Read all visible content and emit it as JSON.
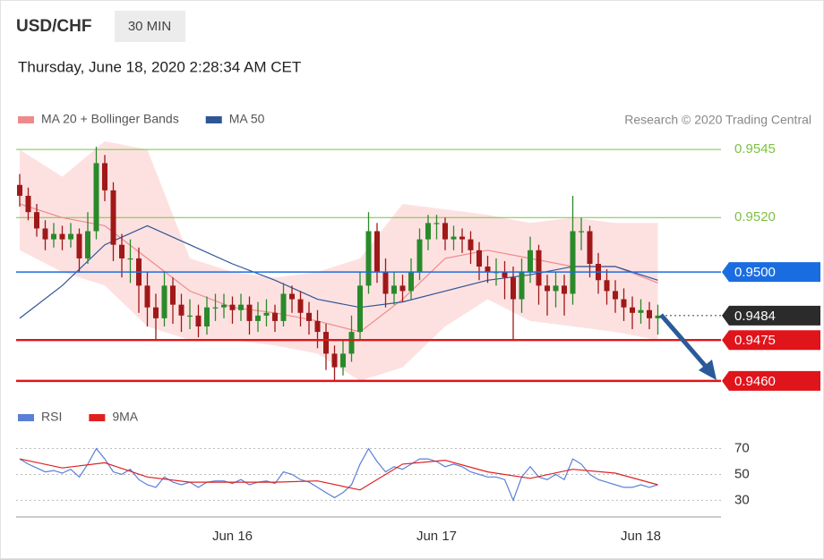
{
  "header": {
    "symbol": "USD/CHF",
    "timeframe": "30 MIN",
    "datetime": "Thursday, June 18, 2020 2:28:34 AM CET"
  },
  "copyright": "Research © 2020 Trading Central",
  "chart_data": [
    {
      "type": "candlestick",
      "ylim": [
        0.9457,
        0.9549
      ],
      "up_color": "#2a8a2a",
      "down_color": "#a01818",
      "open": [
        0.9532,
        0.9528,
        0.9522,
        0.9516,
        0.9512,
        0.9514,
        0.9512,
        0.9514,
        0.9505,
        0.9515,
        0.954,
        0.953,
        0.951,
        0.9505,
        0.9505,
        0.9495,
        0.9487,
        0.9483,
        0.9495,
        0.9488,
        0.9484,
        0.9484,
        0.948,
        0.9487,
        0.9487,
        0.9488,
        0.9486,
        0.9488,
        0.9482,
        0.9484,
        0.9485,
        0.9482,
        0.9492,
        0.949,
        0.9485,
        0.9482,
        0.9478,
        0.947,
        0.9465,
        0.947,
        0.9478,
        0.9495,
        0.9515,
        0.95,
        0.9492,
        0.9495,
        0.9493,
        0.95,
        0.9512,
        0.9518,
        0.9518,
        0.9512,
        0.9513,
        0.9512,
        0.9508,
        0.9502,
        0.95,
        0.95,
        0.9498,
        0.949,
        0.95,
        0.9508,
        0.9495,
        0.9493,
        0.9495,
        0.9492,
        0.9515,
        0.9515,
        0.9503,
        0.9497,
        0.9493,
        0.949,
        0.9487,
        0.9485,
        0.9486,
        0.9483
      ],
      "high": [
        0.9536,
        0.9531,
        0.9525,
        0.9519,
        0.9518,
        0.9517,
        0.9518,
        0.9516,
        0.9522,
        0.9546,
        0.9543,
        0.9533,
        0.9514,
        0.9512,
        0.9509,
        0.95,
        0.9492,
        0.95,
        0.9498,
        0.9492,
        0.949,
        0.9488,
        0.9491,
        0.9492,
        0.9492,
        0.9491,
        0.9492,
        0.9491,
        0.9489,
        0.949,
        0.9488,
        0.9496,
        0.9495,
        0.9493,
        0.9489,
        0.9486,
        0.9481,
        0.9473,
        0.9475,
        0.9484,
        0.95,
        0.9522,
        0.9518,
        0.9505,
        0.95,
        0.9499,
        0.9505,
        0.9516,
        0.9521,
        0.9521,
        0.952,
        0.9517,
        0.9516,
        0.9515,
        0.9511,
        0.9506,
        0.9505,
        0.9504,
        0.9502,
        0.9505,
        0.9513,
        0.951,
        0.9499,
        0.95,
        0.9499,
        0.9528,
        0.952,
        0.9517,
        0.9507,
        0.9501,
        0.9497,
        0.9494,
        0.9491,
        0.949,
        0.9489,
        0.9488
      ],
      "low": [
        0.9524,
        0.9519,
        0.9513,
        0.9508,
        0.9509,
        0.9508,
        0.9509,
        0.95,
        0.9503,
        0.9512,
        0.9526,
        0.9504,
        0.9498,
        0.9496,
        0.9485,
        0.948,
        0.9475,
        0.948,
        0.9481,
        0.9478,
        0.9479,
        0.9476,
        0.9477,
        0.9482,
        0.9483,
        0.9481,
        0.9482,
        0.9477,
        0.9478,
        0.948,
        0.9478,
        0.948,
        0.9485,
        0.948,
        0.9477,
        0.9472,
        0.9464,
        0.946,
        0.9462,
        0.9467,
        0.9475,
        0.9492,
        0.9496,
        0.9487,
        0.9488,
        0.9489,
        0.949,
        0.9497,
        0.9508,
        0.9512,
        0.9508,
        0.9508,
        0.9507,
        0.9503,
        0.9497,
        0.9496,
        0.9495,
        0.949,
        0.9475,
        0.9485,
        0.9496,
        0.9488,
        0.9484,
        0.9487,
        0.9484,
        0.9488,
        0.9508,
        0.9498,
        0.9492,
        0.9488,
        0.9485,
        0.9482,
        0.9479,
        0.9481,
        0.9479,
        0.9477
      ],
      "close": [
        0.9528,
        0.9522,
        0.9516,
        0.9512,
        0.9514,
        0.9512,
        0.9514,
        0.9505,
        0.9515,
        0.954,
        0.953,
        0.951,
        0.9505,
        0.9505,
        0.9495,
        0.9487,
        0.9483,
        0.9495,
        0.9488,
        0.9484,
        0.9484,
        0.948,
        0.9487,
        0.9487,
        0.9488,
        0.9486,
        0.9488,
        0.9482,
        0.9484,
        0.9485,
        0.9482,
        0.9492,
        0.949,
        0.9485,
        0.9482,
        0.9478,
        0.947,
        0.9465,
        0.947,
        0.9478,
        0.9495,
        0.9515,
        0.95,
        0.9492,
        0.9495,
        0.9493,
        0.95,
        0.9512,
        0.9518,
        0.9518,
        0.9512,
        0.9513,
        0.9512,
        0.9508,
        0.9502,
        0.95,
        0.95,
        0.9498,
        0.949,
        0.95,
        0.9508,
        0.9495,
        0.9493,
        0.9495,
        0.9492,
        0.9515,
        0.9515,
        0.9503,
        0.9497,
        0.9493,
        0.949,
        0.9487,
        0.9485,
        0.9486,
        0.9483,
        0.9484
      ],
      "series": [
        {
          "name": "MA 20 + Bollinger Bands",
          "color": "#ef8a8a",
          "band_color": "#fde1e1",
          "x": [
            0,
            5,
            10,
            15,
            20,
            25,
            30,
            35,
            40,
            45,
            50,
            55,
            60,
            65,
            70,
            75
          ],
          "values": [
            0.9525,
            0.952,
            0.9517,
            0.9505,
            0.9493,
            0.9487,
            0.9485,
            0.9482,
            0.9478,
            0.949,
            0.9505,
            0.9508,
            0.9505,
            0.9502,
            0.9502,
            0.9496
          ],
          "upper": [
            0.9545,
            0.9535,
            0.9548,
            0.9545,
            0.9505,
            0.95,
            0.9498,
            0.95,
            0.9505,
            0.9525,
            0.9523,
            0.9521,
            0.9518,
            0.952,
            0.9518,
            0.9518
          ],
          "lower": [
            0.9508,
            0.95,
            0.9495,
            0.948,
            0.9475,
            0.9475,
            0.9473,
            0.947,
            0.946,
            0.9465,
            0.948,
            0.949,
            0.9482,
            0.948,
            0.9478,
            0.9475
          ]
        },
        {
          "name": "MA 50",
          "color": "#2f5596",
          "x": [
            0,
            5,
            10,
            15,
            20,
            25,
            30,
            35,
            40,
            45,
            50,
            55,
            60,
            65,
            70,
            75
          ],
          "values": [
            0.9483,
            0.9495,
            0.951,
            0.9517,
            0.951,
            0.9503,
            0.9497,
            0.949,
            0.9487,
            0.9489,
            0.9493,
            0.9497,
            0.9499,
            0.9502,
            0.9502,
            0.9497
          ]
        }
      ],
      "levels": [
        {
          "value": 0.9545,
          "color": "#7cc243",
          "style": "plain"
        },
        {
          "value": 0.952,
          "label": "0.9520",
          "color": "#7cc243",
          "style": "plain"
        },
        {
          "value": 0.95,
          "label": "0.9500",
          "color": "#1a6de0",
          "style": "box"
        },
        {
          "value": 0.9484,
          "color": "#2b2b2b",
          "style": "dotted-box"
        },
        {
          "value": 0.9475,
          "color": "#e0141b",
          "style": "box"
        },
        {
          "value": 0.946,
          "label": "0.9460",
          "color": "#e0141b",
          "style": "box"
        }
      ]
    },
    {
      "type": "line",
      "ylim": [
        24,
        78
      ],
      "yticks": [
        30,
        50,
        70
      ],
      "categories": [
        null,
        null,
        null,
        null,
        null,
        null,
        null,
        null,
        null,
        null,
        null,
        null,
        null,
        null,
        null,
        null,
        null,
        null,
        null,
        null,
        null,
        null,
        null,
        null,
        null,
        "Jun 16",
        null,
        null,
        null,
        null,
        null,
        null,
        null,
        null,
        null,
        null,
        null,
        null,
        null,
        null,
        null,
        null,
        null,
        null,
        null,
        null,
        null,
        null,
        null,
        "Jun 17",
        null,
        null,
        null,
        null,
        null,
        null,
        null,
        null,
        null,
        null,
        null,
        null,
        null,
        null,
        null,
        null,
        null,
        null,
        null,
        null,
        null,
        null,
        null,
        "Jun 18",
        null,
        null
      ],
      "series": [
        {
          "name": "RSI",
          "color": "#5b7fd6",
          "values": [
            62,
            58,
            55,
            52,
            53,
            51,
            54,
            48,
            58,
            70,
            62,
            52,
            50,
            54,
            46,
            42,
            40,
            48,
            44,
            42,
            44,
            40,
            44,
            45,
            45,
            43,
            46,
            42,
            44,
            45,
            43,
            52,
            50,
            46,
            44,
            40,
            36,
            32,
            36,
            42,
            58,
            70,
            60,
            52,
            56,
            54,
            58,
            62,
            62,
            60,
            56,
            58,
            56,
            52,
            50,
            48,
            48,
            46,
            30,
            48,
            56,
            48,
            46,
            50,
            46,
            62,
            58,
            50,
            46,
            44,
            42,
            40,
            40,
            42,
            40,
            42
          ]
        },
        {
          "name": "9MA",
          "color": "#e02020",
          "x": [
            0,
            5,
            10,
            15,
            20,
            25,
            30,
            35,
            40,
            45,
            50,
            55,
            60,
            65,
            70,
            75
          ],
          "values": [
            62,
            55,
            59,
            48,
            44,
            44,
            44,
            45,
            38,
            58,
            61,
            52,
            47,
            54,
            51,
            42
          ]
        }
      ]
    }
  ]
}
